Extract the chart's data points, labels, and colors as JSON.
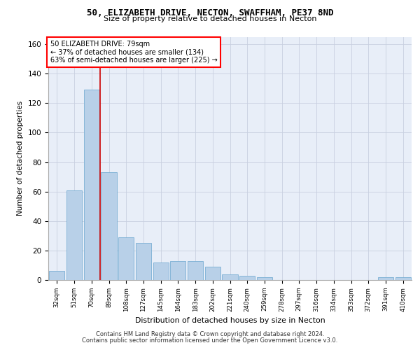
{
  "title_line1": "50, ELIZABETH DRIVE, NECTON, SWAFFHAM, PE37 8ND",
  "title_line2": "Size of property relative to detached houses in Necton",
  "xlabel": "Distribution of detached houses by size in Necton",
  "ylabel": "Number of detached properties",
  "categories": [
    "32sqm",
    "51sqm",
    "70sqm",
    "89sqm",
    "108sqm",
    "127sqm",
    "145sqm",
    "164sqm",
    "183sqm",
    "202sqm",
    "221sqm",
    "240sqm",
    "259sqm",
    "278sqm",
    "297sqm",
    "316sqm",
    "334sqm",
    "353sqm",
    "372sqm",
    "391sqm",
    "410sqm"
  ],
  "values": [
    6,
    61,
    129,
    73,
    29,
    25,
    12,
    13,
    13,
    9,
    4,
    3,
    2,
    0,
    0,
    0,
    0,
    0,
    0,
    2,
    2
  ],
  "bar_color": "#b8d0e8",
  "bar_edge_color": "#7aafd4",
  "grid_color": "#c8d0e0",
  "background_color": "#e8eef8",
  "annotation_line1": "50 ELIZABETH DRIVE: 79sqm",
  "annotation_line2": "← 37% of detached houses are smaller (134)",
  "annotation_line3": "63% of semi-detached houses are larger (225) →",
  "vline_position": 2.5,
  "vline_color": "#cc0000",
  "ylim": [
    0,
    165
  ],
  "yticks": [
    0,
    20,
    40,
    60,
    80,
    100,
    120,
    140,
    160
  ],
  "footer_line1": "Contains HM Land Registry data © Crown copyright and database right 2024.",
  "footer_line2": "Contains public sector information licensed under the Open Government Licence v3.0."
}
